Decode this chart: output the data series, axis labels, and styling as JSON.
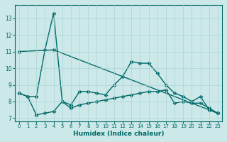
{
  "xlabel": "Humidex (Indice chaleur)",
  "bg_color": "#cce8e8",
  "grid_color": "#aad4d4",
  "line_color": "#006868",
  "xlim": [
    -0.5,
    23.5
  ],
  "ylim": [
    6.8,
    13.8
  ],
  "yticks": [
    7,
    8,
    9,
    10,
    11,
    12,
    13
  ],
  "xticks": [
    0,
    1,
    2,
    3,
    4,
    5,
    6,
    7,
    8,
    9,
    10,
    11,
    12,
    13,
    14,
    15,
    16,
    17,
    18,
    19,
    20,
    21,
    22,
    23
  ],
  "series1_x": [
    0,
    1,
    2,
    3,
    4,
    5,
    6,
    7,
    8,
    9,
    10,
    11,
    12,
    13,
    14,
    15,
    16,
    17,
    18,
    19,
    20,
    21,
    22,
    23
  ],
  "series1_y": [
    8.5,
    8.3,
    8.3,
    11.1,
    13.3,
    8.0,
    7.8,
    8.6,
    8.6,
    8.5,
    8.4,
    9.0,
    9.5,
    10.4,
    10.3,
    10.3,
    9.7,
    9.0,
    8.5,
    8.3,
    8.0,
    8.3,
    7.5,
    7.3
  ],
  "series2_x": [
    0,
    1,
    2,
    3,
    4,
    5,
    6,
    7,
    8,
    9,
    10,
    11,
    12,
    13,
    14,
    15,
    16,
    17,
    18,
    19,
    20,
    21,
    22,
    23
  ],
  "series2_y": [
    8.5,
    8.3,
    7.2,
    7.3,
    7.4,
    8.0,
    7.6,
    7.8,
    7.9,
    8.0,
    8.1,
    8.2,
    8.3,
    8.4,
    8.5,
    8.6,
    8.6,
    8.7,
    7.9,
    8.0,
    7.9,
    7.9,
    7.6,
    7.3
  ],
  "series3_x": [
    0,
    4,
    23
  ],
  "series3_y": [
    11.0,
    11.1,
    7.3
  ],
  "markersize": 2.5,
  "linewidth": 1.0
}
